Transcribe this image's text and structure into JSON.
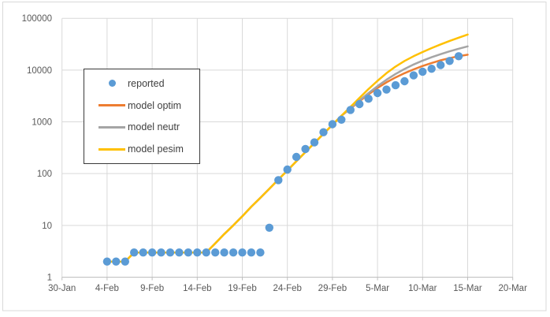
{
  "chart_data": {
    "type": "line",
    "title": "",
    "x_axis": {
      "tick_labels": [
        "30-Jan",
        "4-Feb",
        "9-Feb",
        "14-Feb",
        "19-Feb",
        "24-Feb",
        "29-Feb",
        "5-Mar",
        "10-Mar",
        "15-Mar",
        "20-Mar"
      ],
      "tick_step_days": 5,
      "range_days": [
        0,
        50
      ],
      "x_unit": "days since 30-Jan"
    },
    "y_axis": {
      "scale": "log",
      "range": [
        1,
        100000
      ],
      "tick_labels": [
        "1",
        "10",
        "100",
        "1000",
        "10000",
        "100000"
      ]
    },
    "grid": true,
    "legend_position": "inside-upper-left",
    "series": [
      {
        "name": "reported",
        "type": "scatter",
        "marker": "circle",
        "color": "#5B9BD5",
        "x_days": [
          5,
          6,
          7,
          8,
          9,
          10,
          11,
          12,
          13,
          14,
          15,
          16,
          17,
          18,
          19,
          20,
          21,
          22,
          23,
          24,
          25,
          26,
          27,
          28,
          29,
          30,
          31,
          32,
          33,
          34,
          35,
          36,
          37,
          38,
          39,
          40,
          41,
          42,
          43,
          44
        ],
        "values": [
          2,
          2,
          2,
          3,
          3,
          3,
          3,
          3,
          3,
          3,
          3,
          3,
          3,
          3,
          3,
          3,
          3,
          3,
          9,
          75,
          120,
          210,
          300,
          400,
          630,
          900,
          1100,
          1700,
          2200,
          2800,
          3600,
          4200,
          5100,
          6100,
          7900,
          9300,
          10600,
          12500,
          15000,
          18500
        ]
      },
      {
        "name": "model optim",
        "type": "line",
        "color": "#ED7D31",
        "x_days": [
          5,
          6,
          7,
          8,
          9,
          10,
          11,
          12,
          13,
          14,
          15,
          16,
          17,
          18,
          19,
          20,
          21,
          22,
          23,
          24,
          25,
          26,
          27,
          28,
          29,
          30,
          31,
          32,
          33,
          34,
          35,
          36,
          37,
          38,
          39,
          40,
          41,
          42,
          43,
          44,
          45
        ],
        "values": [
          2,
          2,
          2,
          3,
          3,
          3,
          3,
          3,
          3,
          3,
          3,
          3,
          4.5,
          6.8,
          10,
          15,
          23,
          34,
          51,
          77,
          115,
          173,
          260,
          390,
          585,
          875,
          1310,
          1800,
          2500,
          3400,
          4500,
          5800,
          7200,
          8700,
          10300,
          12000,
          13700,
          15400,
          17000,
          18500,
          19800
        ]
      },
      {
        "name": "model neutr",
        "type": "line",
        "color": "#A5A5A5",
        "x_days": [
          5,
          6,
          7,
          8,
          9,
          10,
          11,
          12,
          13,
          14,
          15,
          16,
          17,
          18,
          19,
          20,
          21,
          22,
          23,
          24,
          25,
          26,
          27,
          28,
          29,
          30,
          31,
          32,
          33,
          34,
          35,
          36,
          37,
          38,
          39,
          40,
          41,
          42,
          43,
          44,
          45
        ],
        "values": [
          2,
          2,
          2,
          3,
          3,
          3,
          3,
          3,
          3,
          3,
          3,
          3,
          4.5,
          6.8,
          10,
          15,
          23,
          34,
          51,
          77,
          115,
          173,
          260,
          390,
          585,
          875,
          1310,
          1850,
          2600,
          3600,
          4900,
          6500,
          8400,
          10500,
          12800,
          15200,
          17700,
          20300,
          23000,
          25800,
          28700
        ]
      },
      {
        "name": "model pesim",
        "type": "line",
        "color": "#FFC000",
        "x_days": [
          5,
          6,
          7,
          8,
          9,
          10,
          11,
          12,
          13,
          14,
          15,
          16,
          17,
          18,
          19,
          20,
          21,
          22,
          23,
          24,
          25,
          26,
          27,
          28,
          29,
          30,
          31,
          32,
          33,
          34,
          35,
          36,
          37,
          38,
          39,
          40,
          41,
          42,
          43,
          44,
          45
        ],
        "values": [
          2,
          2,
          2,
          3,
          3,
          3,
          3,
          3,
          3,
          3,
          3,
          3,
          4.5,
          6.8,
          10,
          15,
          23,
          34,
          51,
          77,
          115,
          173,
          260,
          390,
          585,
          875,
          1310,
          1950,
          2900,
          4300,
          6200,
          8700,
          11700,
          15000,
          18500,
          22300,
          26600,
          31300,
          36500,
          42200,
          48500
        ]
      }
    ]
  },
  "colors": {
    "background": "#FFFFFF",
    "gridline": "#D9D9D9",
    "axis_line": "#BFBFBF",
    "tick_text": "#595959",
    "legend_text": "#404040",
    "legend_border": "#3A3A3A",
    "frame_border": "#D9D9D9"
  }
}
